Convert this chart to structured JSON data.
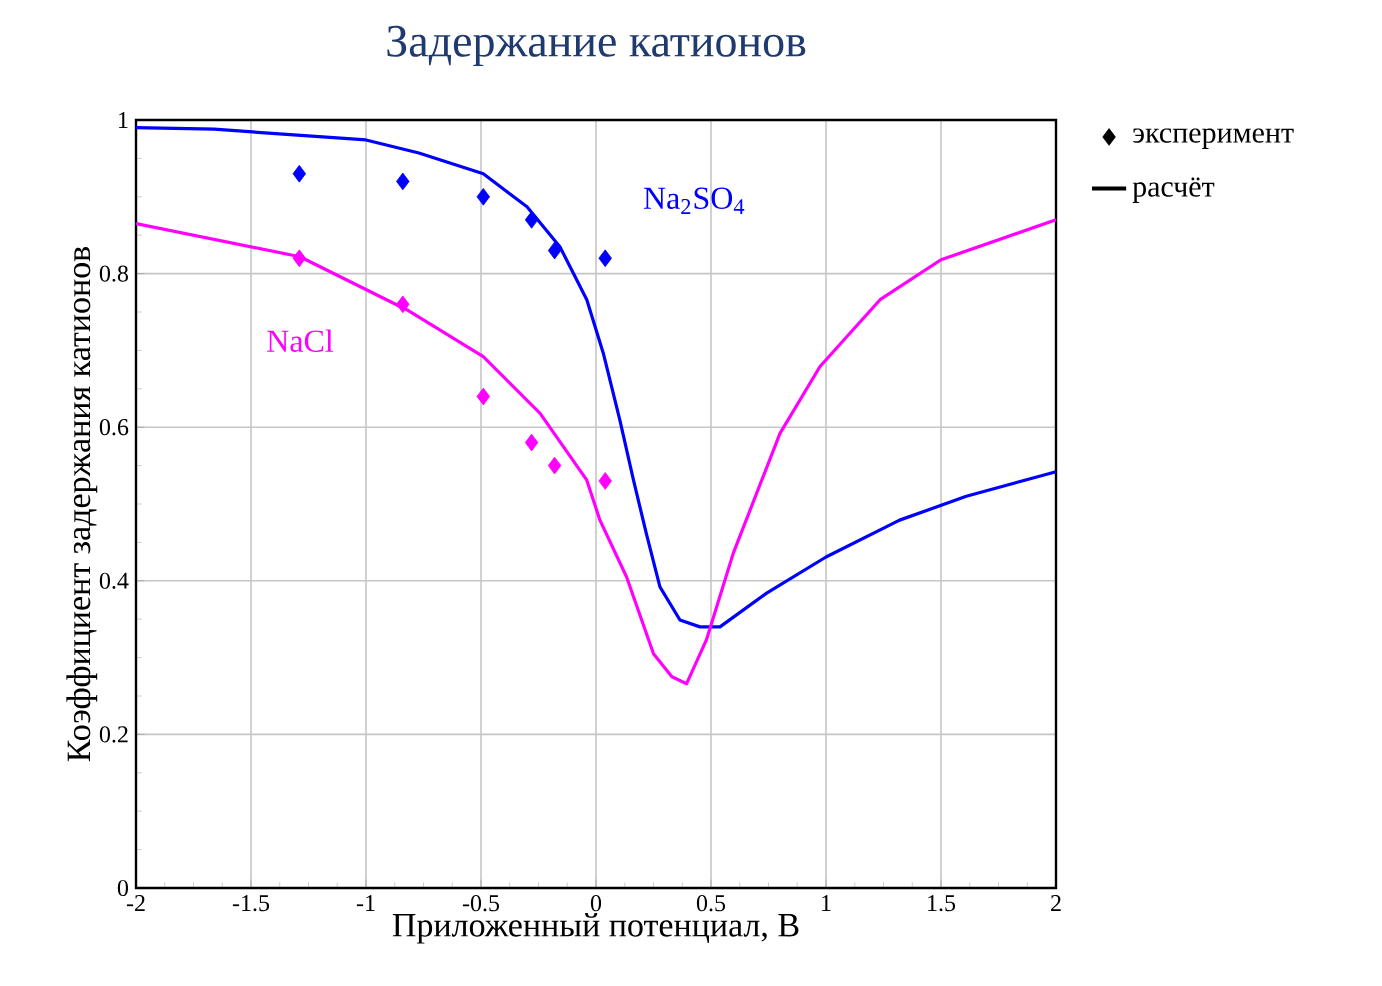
{
  "chart_data": {
    "type": "line",
    "title": "Задержание катионов",
    "xlabel": "Приложенный потенциал, В",
    "ylabel": "Коэффициент задержания катионов",
    "xlim": [
      -2,
      2
    ],
    "ylim": [
      0,
      1
    ],
    "xticks": [
      -2,
      -1.5,
      -1,
      -0.5,
      0,
      0.5,
      1,
      1.5,
      2
    ],
    "yticks": [
      0,
      0.2,
      0.4,
      0.6,
      0.8,
      1
    ],
    "grid": true,
    "legend": "right",
    "series": [
      {
        "type": "scatter",
        "marker": "diamond",
        "color": "#0000ff",
        "x": [
          -1.29,
          -0.84,
          -0.49,
          -0.28,
          -0.18,
          0.04
        ],
        "values": [
          0.93,
          0.92,
          0.9,
          0.87,
          0.83,
          0.82
        ]
      },
      {
        "type": "line",
        "name": "Na$_{2}$SO$_{4}$",
        "color": "#0000ff",
        "x": [
          -2,
          -1.66,
          -1.0,
          -0.77,
          -0.49,
          -0.3,
          -0.157,
          -0.04,
          0.032,
          0.104,
          0.163,
          0.22,
          0.278,
          0.365,
          0.452,
          0.539,
          0.742,
          1.0,
          1.32,
          1.61,
          2.0
        ],
        "values": [
          0.99,
          0.988,
          0.974,
          0.957,
          0.93,
          0.887,
          0.835,
          0.766,
          0.696,
          0.609,
          0.531,
          0.46,
          0.392,
          0.349,
          0.34,
          0.34,
          0.384,
          0.431,
          0.479,
          0.51,
          0.542
        ]
      },
      {
        "type": "scatter",
        "marker": "diamond",
        "color": "#ff00ff",
        "x": [
          -1.29,
          -0.84,
          -0.49,
          -0.28,
          -0.18,
          0.04
        ],
        "values": [
          0.82,
          0.76,
          0.64,
          0.58,
          0.55,
          0.53
        ]
      },
      {
        "type": "line",
        "name": "NaCl",
        "color": "#ff00ff",
        "x": [
          -2,
          -1.287,
          -0.823,
          -0.49,
          -0.243,
          -0.04,
          0.017,
          0.133,
          0.25,
          0.33,
          0.394,
          0.48,
          0.597,
          0.8,
          0.974,
          1.235,
          1.5,
          2.0
        ],
        "values": [
          0.865,
          0.822,
          0.753,
          0.692,
          0.618,
          0.531,
          0.479,
          0.405,
          0.305,
          0.275,
          0.266,
          0.323,
          0.436,
          0.592,
          0.679,
          0.766,
          0.818,
          0.87
        ]
      },
      {
        "type": "scatter",
        "marker": "diamond",
        "name": "эксперимент",
        "color": "#000000"
      },
      {
        "type": "line",
        "name": "расчёт",
        "color": "#000000"
      }
    ]
  }
}
